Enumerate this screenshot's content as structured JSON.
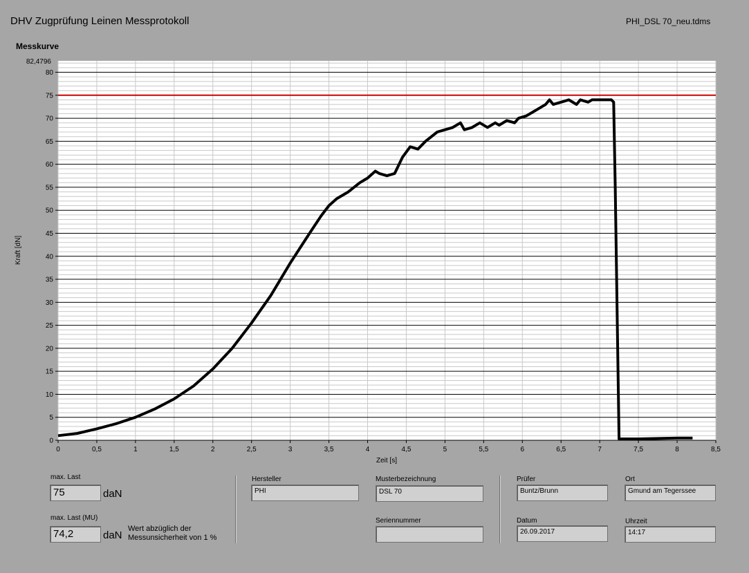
{
  "header": {
    "title": "DHV Zugprüfung Leinen Messprotokoll",
    "file_name": "PHI_DSL 70_neu.tdms"
  },
  "chart_title": "Messkurve",
  "chart_data": {
    "type": "line",
    "xlabel": "Zeit [s]",
    "ylabel": "Kraft [dN]",
    "xlim": [
      0,
      8.5
    ],
    "ylim": [
      0,
      82.4796
    ],
    "y_max_label": "82,4796",
    "x_ticks": [
      "0",
      "0,5",
      "1",
      "1,5",
      "2",
      "2,5",
      "3",
      "3,5",
      "4",
      "4,5",
      "5",
      "5,5",
      "6",
      "6,5",
      "7",
      "7,5",
      "8",
      "8,5"
    ],
    "y_ticks": [
      "0",
      "5",
      "10",
      "15",
      "20",
      "25",
      "30",
      "35",
      "40",
      "45",
      "50",
      "55",
      "60",
      "65",
      "70",
      "75",
      "80"
    ],
    "grid": true,
    "reference_line": {
      "y": 75,
      "color": "#cc0000"
    },
    "series": [
      {
        "color": "#000000",
        "x": [
          0,
          0.25,
          0.5,
          0.75,
          1.0,
          1.25,
          1.5,
          1.75,
          2.0,
          2.25,
          2.5,
          2.75,
          3.0,
          3.25,
          3.4,
          3.5,
          3.6,
          3.75,
          3.9,
          4.0,
          4.1,
          4.15,
          4.25,
          4.35,
          4.45,
          4.55,
          4.65,
          4.75,
          4.9,
          5.0,
          5.1,
          5.2,
          5.25,
          5.35,
          5.45,
          5.55,
          5.65,
          5.7,
          5.8,
          5.9,
          5.95,
          6.05,
          6.15,
          6.2,
          6.3,
          6.35,
          6.4,
          6.5,
          6.6,
          6.7,
          6.75,
          6.85,
          6.9,
          7.0,
          7.05,
          7.15,
          7.18,
          7.2,
          7.25,
          7.5,
          8.0,
          8.2
        ],
        "y": [
          1.0,
          1.5,
          2.5,
          3.6,
          5.0,
          6.8,
          9.0,
          11.8,
          15.5,
          20.0,
          25.5,
          31.5,
          38.5,
          45.0,
          48.8,
          51.0,
          52.5,
          54.0,
          56.0,
          57.0,
          58.5,
          58.0,
          57.5,
          58.0,
          61.5,
          63.8,
          63.3,
          65.0,
          67.0,
          67.5,
          68.0,
          69.0,
          67.5,
          68.0,
          69.0,
          68.0,
          69.0,
          68.5,
          69.5,
          69.0,
          70.0,
          70.5,
          71.5,
          72.0,
          73.0,
          74.0,
          73.0,
          73.5,
          74.0,
          73.0,
          74.0,
          73.5,
          74.0,
          74.0,
          74.0,
          74.0,
          73.5,
          55.0,
          0.3,
          0.3,
          0.5,
          0.5
        ]
      }
    ]
  },
  "results": {
    "max_last_label": "max. Last",
    "max_last_value": "75",
    "max_last_unit": "daN",
    "max_last_mu_label": "max. Last (MU)",
    "max_last_mu_value": "74,2",
    "max_last_mu_unit": "daN",
    "note_line1": "Wert abzüglich der",
    "note_line2": "Messunsicherheit von 1 %"
  },
  "fields": {
    "hersteller_label": "Hersteller",
    "hersteller_value": "PHI",
    "muster_label": "Musterbezeichnung",
    "muster_value": "DSL 70",
    "serien_label": "Seriennummer",
    "serien_value": "",
    "pruefer_label": "Prüfer",
    "pruefer_value": "Buntz/Brunn",
    "datum_label": "Datum",
    "datum_value": "26.09.2017",
    "ort_label": "Ort",
    "ort_value": "Gmund am Tegerssee",
    "uhrzeit_label": "Uhrzeit",
    "uhrzeit_value": "14:17"
  }
}
